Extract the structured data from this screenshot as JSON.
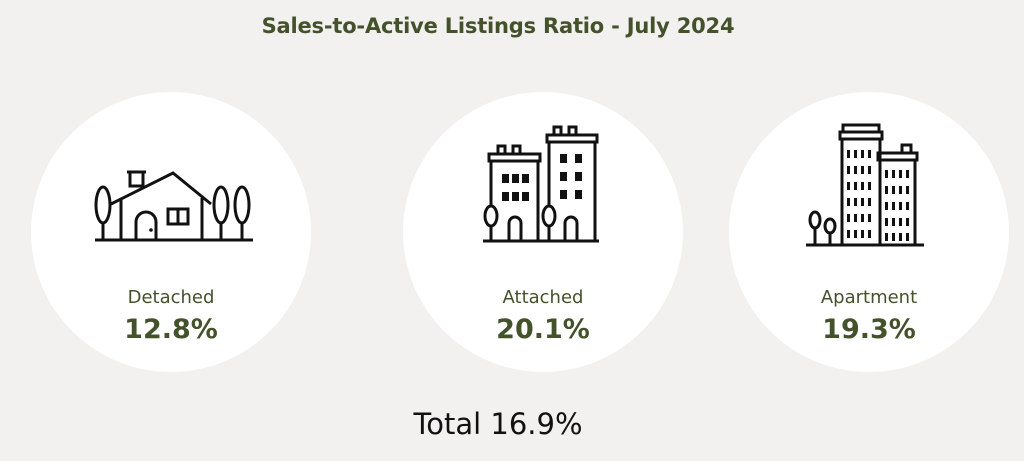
{
  "title": "Sales-to-Active Listings Ratio - July 2024",
  "cards": [
    {
      "label": "Detached",
      "value": "12.8%",
      "icon": "house-icon"
    },
    {
      "label": "Attached",
      "value": "20.1%",
      "icon": "townhouse-icon"
    },
    {
      "label": "Apartment",
      "value": "19.3%",
      "icon": "apartment-building-icon"
    }
  ],
  "total": {
    "label": "Total",
    "value": "16.9%"
  },
  "colors": {
    "background": "#f2f1ef",
    "card": "#ffffff",
    "accent": "#43522a",
    "text": "#111111"
  }
}
